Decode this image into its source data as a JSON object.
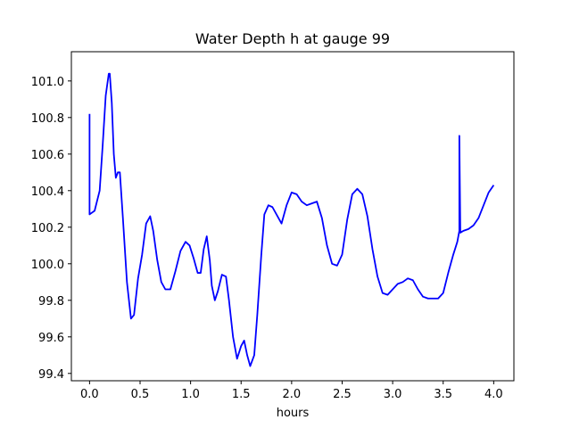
{
  "chart_data": {
    "type": "line",
    "title": "Water Depth h at gauge 99",
    "xlabel": "hours",
    "ylabel": "",
    "xlim": [
      -0.18,
      4.2
    ],
    "ylim": [
      99.36,
      101.16
    ],
    "xticks": [
      0.0,
      0.5,
      1.0,
      1.5,
      2.0,
      2.5,
      3.0,
      3.5,
      4.0
    ],
    "xtick_labels": [
      "0.0",
      "0.5",
      "1.0",
      "1.5",
      "2.0",
      "2.5",
      "3.0",
      "3.5",
      "4.0"
    ],
    "yticks": [
      99.4,
      99.6,
      99.8,
      100.0,
      100.2,
      100.4,
      100.6,
      100.8,
      101.0
    ],
    "ytick_labels": [
      "99.4",
      "99.6",
      "99.8",
      "100.0",
      "100.2",
      "100.4",
      "100.6",
      "100.8",
      "101.0"
    ],
    "grid": false,
    "legend": "none",
    "color": "#0000ff",
    "series": [
      {
        "x": [
          0.0,
          0.0,
          0.05,
          0.1,
          0.13,
          0.16,
          0.19,
          0.2,
          0.22,
          0.24,
          0.26,
          0.28,
          0.3,
          0.33,
          0.37,
          0.41,
          0.44,
          0.48,
          0.52,
          0.56,
          0.6,
          0.63,
          0.67,
          0.71,
          0.75,
          0.8,
          0.85,
          0.9,
          0.95,
          0.99,
          1.03,
          1.07,
          1.1,
          1.13,
          1.16,
          1.19,
          1.21,
          1.24,
          1.27,
          1.31,
          1.35,
          1.38,
          1.42,
          1.46,
          1.5,
          1.53,
          1.56,
          1.59,
          1.63,
          1.66,
          1.7,
          1.73,
          1.77,
          1.81,
          1.85,
          1.9,
          1.95,
          2.0,
          2.05,
          2.1,
          2.15,
          2.2,
          2.25,
          2.3,
          2.35,
          2.4,
          2.45,
          2.5,
          2.55,
          2.6,
          2.65,
          2.7,
          2.75,
          2.8,
          2.85,
          2.9,
          2.95,
          3.0,
          3.05,
          3.1,
          3.15,
          3.2,
          3.25,
          3.3,
          3.35,
          3.4,
          3.45,
          3.5,
          3.55,
          3.6,
          3.64,
          3.66,
          3.66,
          3.67,
          3.7,
          3.75,
          3.8,
          3.85,
          3.9,
          3.95,
          4.0
        ],
        "y": [
          100.82,
          100.27,
          100.29,
          100.4,
          100.65,
          100.92,
          101.04,
          101.04,
          100.88,
          100.6,
          100.47,
          100.5,
          100.5,
          100.25,
          99.9,
          99.7,
          99.72,
          99.92,
          100.05,
          100.22,
          100.26,
          100.18,
          100.02,
          99.9,
          99.86,
          99.86,
          99.96,
          100.07,
          100.12,
          100.1,
          100.03,
          99.95,
          99.95,
          100.08,
          100.15,
          100.02,
          99.88,
          99.8,
          99.85,
          99.94,
          99.93,
          99.8,
          99.6,
          99.48,
          99.55,
          99.58,
          99.5,
          99.44,
          99.5,
          99.72,
          100.05,
          100.27,
          100.32,
          100.31,
          100.27,
          100.22,
          100.32,
          100.39,
          100.38,
          100.34,
          100.32,
          100.33,
          100.34,
          100.25,
          100.1,
          100.0,
          99.99,
          100.05,
          100.24,
          100.38,
          100.41,
          100.38,
          100.26,
          100.08,
          99.93,
          99.84,
          99.83,
          99.86,
          99.89,
          99.9,
          99.92,
          99.91,
          99.86,
          99.82,
          99.81,
          99.81,
          99.81,
          99.84,
          99.95,
          100.05,
          100.12,
          100.18,
          100.7,
          100.17,
          100.18,
          100.19,
          100.21,
          100.25,
          100.32,
          100.39,
          100.43
        ]
      }
    ]
  }
}
